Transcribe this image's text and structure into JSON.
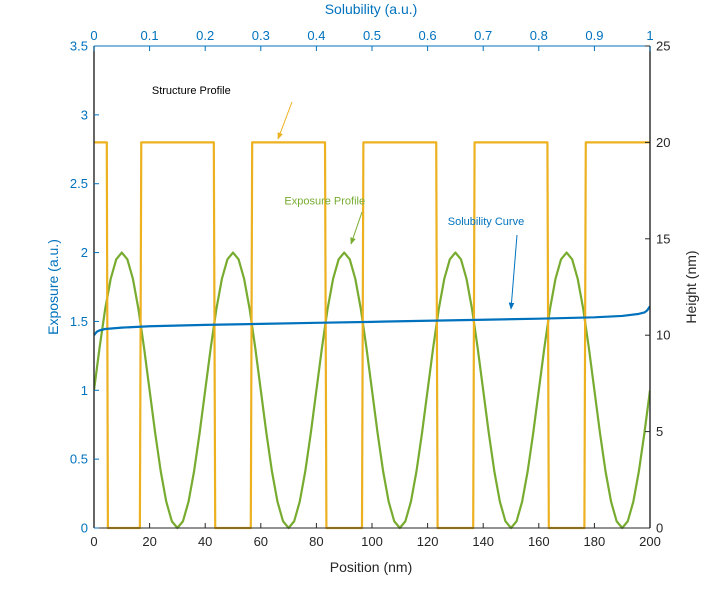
{
  "chart_data": {
    "type": "line",
    "title": "",
    "xlabel": "Position (nm)",
    "xlim": [
      0,
      200
    ],
    "xticks": [
      0,
      20,
      40,
      60,
      80,
      100,
      120,
      140,
      160,
      180,
      200
    ],
    "ylabel_left": "Exposure (a.u.)",
    "ylim_left": [
      0,
      3.5
    ],
    "yticks_left": [
      0,
      0.5,
      1,
      1.5,
      2,
      2.5,
      3,
      3.5
    ],
    "ylabel_right": "Height (nm)",
    "ylim_right": [
      0,
      25
    ],
    "yticks_right": [
      0,
      5,
      10,
      15,
      20,
      25
    ],
    "xlabel_top": "Solubility (a.u.)",
    "xlim_top": [
      0,
      1
    ],
    "xticks_top": [
      0,
      0.1,
      0.2,
      0.3,
      0.4,
      0.5,
      0.6,
      0.7,
      0.8,
      0.9,
      1
    ],
    "grid": false,
    "series": [
      {
        "name": "Exposure Profile",
        "color": "#77ac30",
        "axis": "left",
        "x": [
          0,
          2,
          4,
          6,
          8,
          10,
          12,
          14,
          16,
          18,
          20,
          22,
          24,
          26,
          28,
          30,
          32,
          34,
          36,
          38,
          40,
          42,
          44,
          46,
          48,
          50,
          52,
          54,
          56,
          58,
          60,
          62,
          64,
          66,
          68,
          70,
          72,
          74,
          76,
          78,
          80,
          82,
          84,
          86,
          88,
          90,
          92,
          94,
          96,
          98,
          100,
          102,
          104,
          106,
          108,
          110,
          112,
          114,
          116,
          118,
          120,
          122,
          124,
          126,
          128,
          130,
          132,
          134,
          136,
          138,
          140,
          142,
          144,
          146,
          148,
          150,
          152,
          154,
          156,
          158,
          160,
          162,
          164,
          166,
          168,
          170,
          172,
          174,
          176,
          178,
          180,
          182,
          184,
          186,
          188,
          190,
          192,
          194,
          196,
          198,
          200
        ],
        "y": [
          1.0,
          1.309,
          1.588,
          1.809,
          1.951,
          2.0,
          1.951,
          1.809,
          1.588,
          1.309,
          1.0,
          0.691,
          0.412,
          0.191,
          0.049,
          0.0,
          0.049,
          0.191,
          0.412,
          0.691,
          1.0,
          1.309,
          1.588,
          1.809,
          1.951,
          2.0,
          1.951,
          1.809,
          1.588,
          1.309,
          1.0,
          0.691,
          0.412,
          0.191,
          0.049,
          0.0,
          0.049,
          0.191,
          0.412,
          0.691,
          1.0,
          1.309,
          1.588,
          1.809,
          1.951,
          2.0,
          1.951,
          1.809,
          1.588,
          1.309,
          1.0,
          0.691,
          0.412,
          0.191,
          0.049,
          0.0,
          0.049,
          0.191,
          0.412,
          0.691,
          1.0,
          1.309,
          1.588,
          1.809,
          1.951,
          2.0,
          1.951,
          1.809,
          1.588,
          1.309,
          1.0,
          0.691,
          0.412,
          0.191,
          0.049,
          0.0,
          0.049,
          0.191,
          0.412,
          0.691,
          1.0,
          1.309,
          1.588,
          1.809,
          1.951,
          2.0,
          1.951,
          1.809,
          1.588,
          1.309,
          1.0,
          0.691,
          0.412,
          0.191,
          0.049,
          0.0,
          0.049,
          0.191,
          0.412,
          0.691,
          1.0
        ]
      },
      {
        "name": "Structure Profile",
        "color": "#edb120",
        "axis": "right",
        "x": [
          0,
          4.6,
          5,
          16.5,
          17,
          43.1,
          43.6,
          56.4,
          56.9,
          83.1,
          83.6,
          96.4,
          96.9,
          123.1,
          123.6,
          136.4,
          136.9,
          163.1,
          163.6,
          176.4,
          176.9,
          200
        ],
        "y": [
          20,
          20,
          0,
          0,
          20,
          20,
          0,
          0,
          20,
          20,
          0,
          0,
          20,
          20,
          0,
          0,
          20,
          20,
          0,
          0,
          20,
          20
        ]
      },
      {
        "name": "Solubility Curve",
        "color": "#0072bd",
        "axis": "top-left",
        "x": [
          0.0,
          0.005,
          0.01,
          0.02,
          0.05,
          0.1,
          0.2,
          0.3,
          0.4,
          0.5,
          0.6,
          0.7,
          0.8,
          0.9,
          0.95,
          0.98,
          0.99,
          0.995,
          1.0
        ],
        "y": [
          1.4,
          1.425,
          1.435,
          1.445,
          1.455,
          1.465,
          1.475,
          1.482,
          1.49,
          1.497,
          1.505,
          1.512,
          1.52,
          1.53,
          1.54,
          1.555,
          1.565,
          1.58,
          1.61
        ]
      }
    ],
    "annotations": [
      {
        "text": "Structure Profile",
        "color": "#000000",
        "x": 35,
        "y_right": 22.5
      },
      {
        "text": "Exposure Profile",
        "color": "#77ac30",
        "x": 83,
        "y_left": 2.35
      },
      {
        "text": "Solubility Curve",
        "color": "#0072bd",
        "x": 141,
        "y_left": 2.2
      }
    ]
  }
}
